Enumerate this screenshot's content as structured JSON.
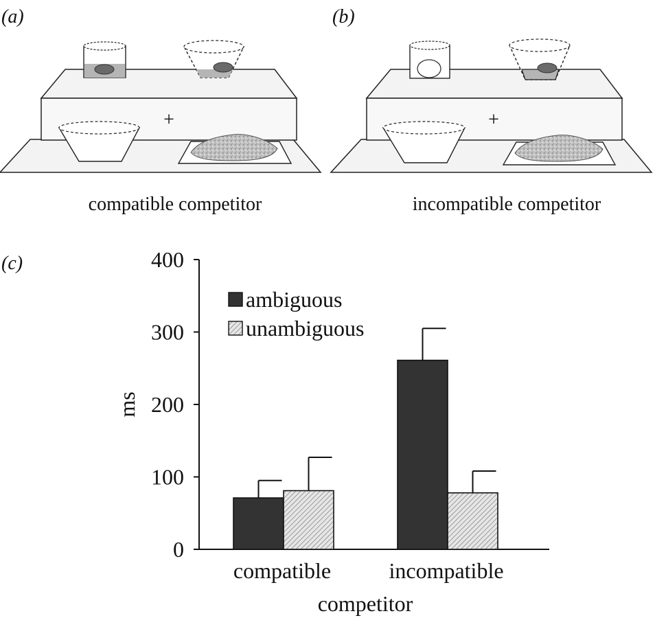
{
  "panels": {
    "a": {
      "label": "(a)",
      "caption": "compatible competitor"
    },
    "b": {
      "label": "(b)",
      "caption": "incompatible competitor"
    },
    "c": {
      "label": "(c)"
    }
  },
  "colors": {
    "ambiguous": "#333333",
    "unambiguous": "#e6e6e6",
    "hatch": "#7a7a7a",
    "axis": "#111111"
  },
  "chart_data": {
    "type": "bar",
    "categories": [
      "compatible",
      "incompatible"
    ],
    "series": [
      {
        "name": "ambiguous",
        "values": [
          71,
          261
        ],
        "error": [
          24,
          44
        ]
      },
      {
        "name": "unambiguous",
        "values": [
          81,
          78
        ],
        "error": [
          46,
          30
        ]
      }
    ],
    "xlabel": "competitor",
    "ylabel": "ms",
    "ylim": [
      0,
      400
    ],
    "yticks": [
      "0",
      "100",
      "200",
      "300",
      "400"
    ],
    "grid": false,
    "legend": "top-left"
  }
}
